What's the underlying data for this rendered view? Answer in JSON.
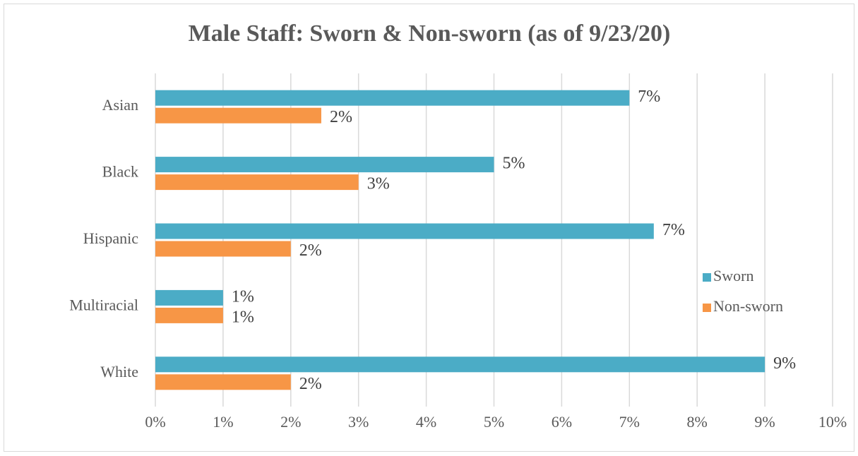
{
  "chart_data": {
    "type": "barh",
    "title": "Male Staff: Sworn & Non-sworn (as of 9/23/20)",
    "categories": [
      "Asian",
      "Black",
      "Hispanic",
      "Multiracial",
      "White"
    ],
    "series": [
      {
        "name": "Sworn",
        "color": "#4bacc6",
        "values": [
          7.0,
          5.0,
          7.36,
          1.0,
          9.0
        ],
        "value_labels": [
          "7%",
          "5%",
          "7%",
          "1%",
          "9%"
        ]
      },
      {
        "name": "Non-sworn",
        "color": "#f79646",
        "values": [
          2.45,
          3.0,
          2.0,
          1.0,
          2.0
        ],
        "value_labels": [
          "2%",
          "3%",
          "2%",
          "1%",
          "2%"
        ]
      }
    ],
    "xlim": [
      0,
      10
    ],
    "xticks": [
      {
        "value": 0,
        "label": "0%"
      },
      {
        "value": 1,
        "label": "1%"
      },
      {
        "value": 2,
        "label": "2%"
      },
      {
        "value": 3,
        "label": "3%"
      },
      {
        "value": 4,
        "label": "4%"
      },
      {
        "value": 5,
        "label": "5%"
      },
      {
        "value": 6,
        "label": "6%"
      },
      {
        "value": 7,
        "label": "7%"
      },
      {
        "value": 8,
        "label": "8%"
      },
      {
        "value": 9,
        "label": "9%"
      },
      {
        "value": 10,
        "label": "10%"
      }
    ],
    "grid": true,
    "legend": "right"
  }
}
